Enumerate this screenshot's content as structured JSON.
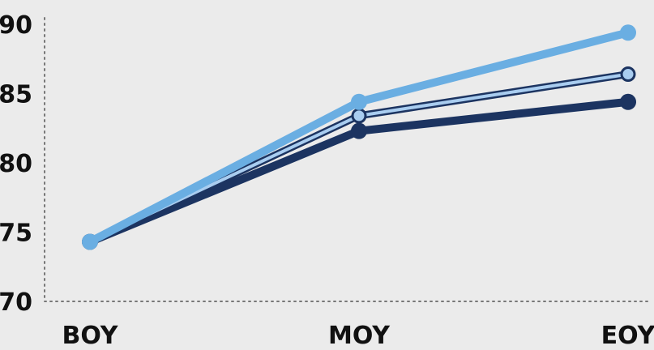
{
  "chart_data": {
    "type": "line",
    "title": "",
    "xlabel": "",
    "ylabel": "",
    "categories": [
      "BOY",
      "MOY",
      "EOY"
    ],
    "ylim": [
      70,
      90
    ],
    "yticks": [
      70,
      75,
      80,
      85,
      90
    ],
    "grid": false,
    "legend": "none",
    "axis_style": "dotted",
    "series": [
      {
        "values": [
          74.3,
          82.3,
          84.4
        ],
        "color": "#1c3461",
        "style": "thick-filled"
      },
      {
        "values": [
          74.3,
          83.4,
          86.4
        ],
        "color": "#a9cdf0",
        "outline": "#1c3461",
        "style": "outlined"
      },
      {
        "values": [
          74.3,
          84.4,
          89.4
        ],
        "color": "#6aaee2",
        "style": "thick-filled"
      }
    ]
  }
}
